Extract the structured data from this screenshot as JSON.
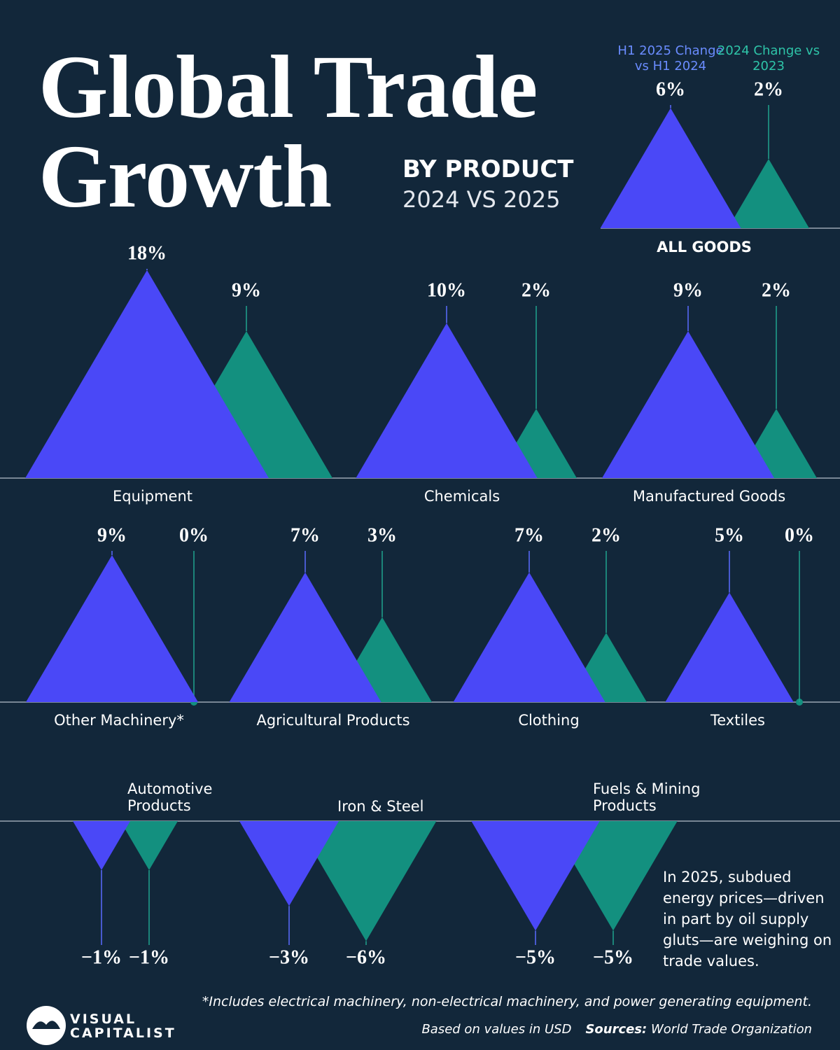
{
  "chart_data": {
    "type": "triangle",
    "title": "Global Trade Growth",
    "subtitle": "BY PRODUCT",
    "subtitle2": "2024 VS 2025",
    "categories": [
      "ALL GOODS",
      "Equipment",
      "Chemicals",
      "Manufactured Goods",
      "Other Machinery*",
      "Agricultural Products",
      "Clothing",
      "Textiles",
      "Automotive Products",
      "Iron & Steel",
      "Fuels & Mining Products"
    ],
    "series": [
      {
        "name": "H1 2025 Change vs H1 2024",
        "color": "#4a48f7",
        "values": [
          6,
          18,
          10,
          9,
          9,
          7,
          7,
          5,
          -1,
          -3,
          -5
        ],
        "value_labels": [
          "6%",
          "18%",
          "10%",
          "9%",
          "9%",
          "7%",
          "7%",
          "5%",
          "−1%",
          "−3%",
          "−5%"
        ]
      },
      {
        "name": "2024 Change vs 2023",
        "color": "#13907f",
        "values": [
          2,
          9,
          2,
          2,
          0,
          3,
          2,
          0,
          -1,
          -6,
          -5
        ],
        "value_labels": [
          "2%",
          "9%",
          "2%",
          "2%",
          "0%",
          "3%",
          "2%",
          "0%",
          "−1%",
          "−6%",
          "−5%"
        ]
      }
    ],
    "annotation": "In 2025, subdued energy prices—driven in part by oil supply gluts—are weighing on trade values.",
    "footnote": "*Includes electrical machinery, non-electrical machinery, and power generating equipment.",
    "based_on": "Based on values in USD",
    "sources_label": "Sources:",
    "sources": "World Trade Organization",
    "brand": [
      "VISUAL",
      "CAPITALIST"
    ]
  }
}
